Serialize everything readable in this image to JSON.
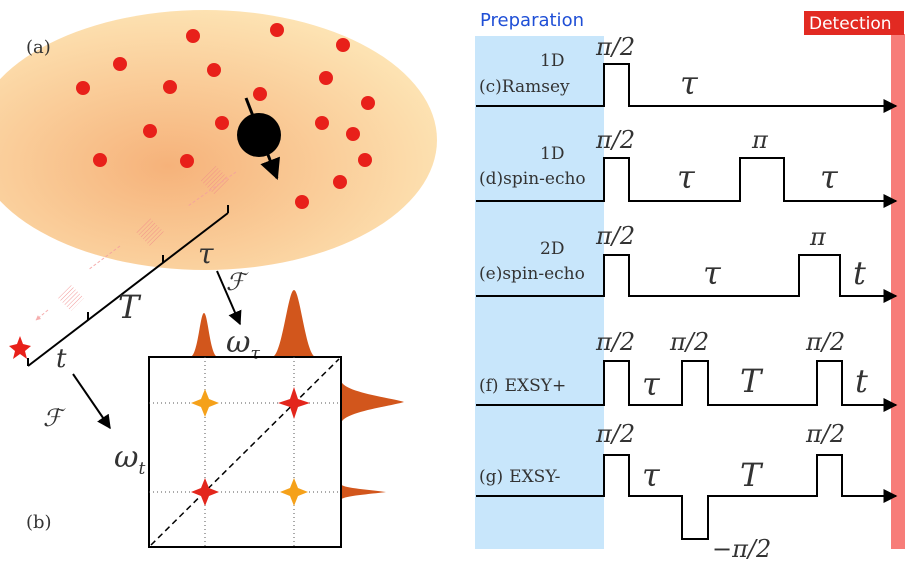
{
  "colors": {
    "bath_inner": "#f6b27a",
    "bath_outer": "#fde3b3",
    "spin_dot": "#e8201a",
    "central_spin": "#000000",
    "preparation_band": "#c8e6fb",
    "detection_bar": "#f77d79",
    "detection_label_bg": "#e22a22",
    "peak_fill": "#d2561c",
    "diag_peak": "#e3261c",
    "cross_peak": "#f5a11a",
    "star": "#e8201a",
    "text": "#333333"
  },
  "left": {
    "panel_a_label": "(a)",
    "panel_b_label": "(b)",
    "axis_labels": {
      "t": "t",
      "T": "T",
      "tau": "τ"
    },
    "fourier_symbol": "ℱ",
    "freq_labels": {
      "omega_t": "ω",
      "omega_t_sub": "t",
      "omega_tau": "ω",
      "omega_tau_sub": "τ"
    }
  },
  "right": {
    "preparation_label": "Preparation",
    "detection_label": "Detection",
    "sequences": [
      {
        "id": "c",
        "tag": "(c)",
        "line1": "1D",
        "line2": "Ramsey",
        "pulses": [
          "π/2"
        ],
        "delays": [
          "τ"
        ]
      },
      {
        "id": "d",
        "tag": "(d)",
        "line1": "1D",
        "line2": "spin-echo",
        "pulses": [
          "π/2",
          "π"
        ],
        "delays": [
          "τ",
          "τ"
        ]
      },
      {
        "id": "e",
        "tag": "(e)",
        "line1": "2D",
        "line2": "spin-echo",
        "pulses": [
          "π/2",
          "π"
        ],
        "delays": [
          "τ",
          "t"
        ]
      },
      {
        "id": "f",
        "tag": "(f)",
        "line1": "",
        "line2": "EXSY+",
        "pulses": [
          "π/2",
          "π/2",
          "π/2"
        ],
        "delays": [
          "τ",
          "T",
          "t"
        ]
      },
      {
        "id": "g",
        "tag": "(g)",
        "line1": "",
        "line2": "EXSY-",
        "pulses": [
          "π/2",
          "−π/2",
          "π/2"
        ],
        "delays": [
          "τ",
          "T"
        ]
      }
    ]
  }
}
